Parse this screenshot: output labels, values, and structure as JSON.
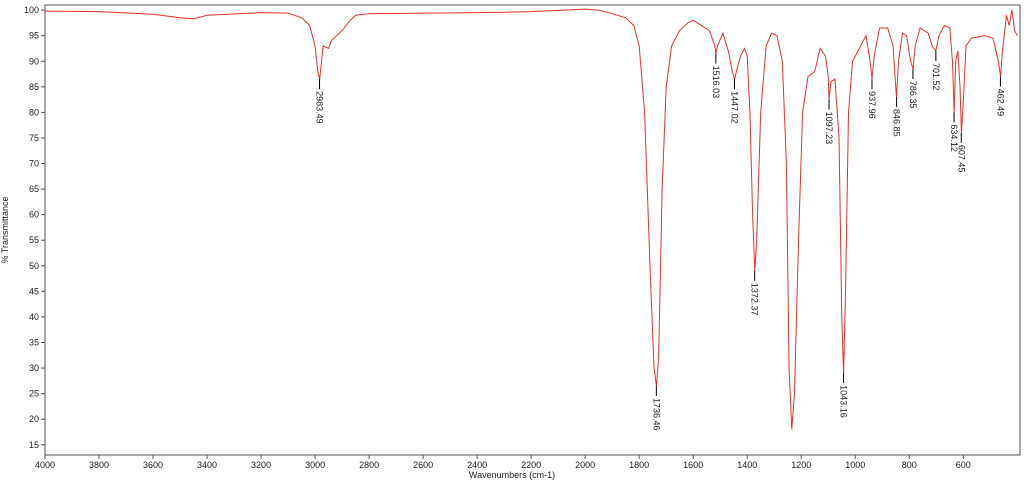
{
  "chart_data": {
    "type": "line",
    "xlabel": "Wavenumbers (cm-1)",
    "ylabel": "% Transmittance",
    "color": "#e8302a",
    "xlim": [
      4000,
      390
    ],
    "ylim": [
      13,
      101
    ],
    "xticks": [
      4000,
      3800,
      3600,
      3400,
      3200,
      3000,
      2800,
      2600,
      2400,
      2200,
      2000,
      1800,
      1600,
      1400,
      1200,
      1000,
      800,
      600
    ],
    "yticks": [
      15,
      20,
      25,
      30,
      35,
      40,
      45,
      50,
      55,
      60,
      65,
      70,
      75,
      80,
      85,
      90,
      95,
      100
    ],
    "x": [
      4000,
      3800,
      3600,
      3500,
      3450,
      3400,
      3200,
      3100,
      3050,
      3020,
      3000,
      2990,
      2983,
      2970,
      2950,
      2940,
      2900,
      2870,
      2850,
      2800,
      2400,
      2200,
      2000,
      1950,
      1900,
      1850,
      1820,
      1800,
      1780,
      1760,
      1745,
      1736,
      1728,
      1715,
      1700,
      1680,
      1650,
      1620,
      1600,
      1570,
      1540,
      1520,
      1516,
      1510,
      1490,
      1470,
      1455,
      1447,
      1440,
      1425,
      1410,
      1400,
      1390,
      1380,
      1372,
      1365,
      1350,
      1330,
      1310,
      1290,
      1270,
      1255,
      1245,
      1235,
      1225,
      1210,
      1195,
      1175,
      1150,
      1130,
      1110,
      1100,
      1097,
      1090,
      1075,
      1060,
      1050,
      1043,
      1036,
      1025,
      1010,
      990,
      960,
      945,
      938,
      930,
      910,
      880,
      860,
      850,
      847,
      840,
      825,
      810,
      795,
      786,
      778,
      760,
      730,
      715,
      702,
      690,
      670,
      650,
      640,
      634,
      628,
      620,
      612,
      607,
      600,
      590,
      570,
      520,
      490,
      470,
      462,
      455,
      440,
      430,
      420,
      410,
      400
    ],
    "values": [
      99.8,
      99.7,
      99.2,
      98.5,
      98.3,
      99,
      99.5,
      99.4,
      98.5,
      97,
      93,
      88,
      86.5,
      93,
      92.5,
      94,
      96,
      98,
      99,
      99.3,
      99.5,
      99.7,
      100.2,
      100,
      99.3,
      98.5,
      97,
      93,
      80,
      50,
      30,
      26.5,
      32,
      65,
      85,
      93,
      96,
      97.5,
      98,
      97,
      96,
      93,
      91.5,
      93,
      95.5,
      92,
      88,
      86.5,
      88,
      91,
      92.5,
      91,
      80,
      60,
      49,
      55,
      80,
      93,
      95.5,
      95,
      90,
      70,
      30,
      18,
      25,
      55,
      80,
      87,
      88,
      92.5,
      91,
      87,
      82.5,
      86,
      86.5,
      75,
      40,
      29,
      45,
      80,
      90,
      92,
      95,
      90,
      86.5,
      91,
      96.5,
      96.5,
      93,
      85,
      83,
      90,
      95.5,
      95,
      90,
      88.5,
      93,
      96.5,
      95.5,
      93,
      92,
      95,
      97,
      96.5,
      90,
      80,
      90,
      92,
      85,
      76,
      82,
      93,
      94.5,
      95,
      94.5,
      90,
      87,
      92,
      99,
      97,
      100,
      96,
      95
    ],
    "annotations": [
      {
        "text": "2983.49",
        "x": 2983.49,
        "y": 86.5
      },
      {
        "text": "1736.46",
        "x": 1736.46,
        "y": 26.5
      },
      {
        "text": "1516.03",
        "x": 1516.03,
        "y": 91.5
      },
      {
        "text": "1447.02",
        "x": 1447.02,
        "y": 86.5
      },
      {
        "text": "1372.37",
        "x": 1372.37,
        "y": 49
      },
      {
        "text": "1097.23",
        "x": 1097.23,
        "y": 82.5
      },
      {
        "text": "1043.16",
        "x": 1043.16,
        "y": 29
      },
      {
        "text": "937.96",
        "x": 937.96,
        "y": 86.5
      },
      {
        "text": "846.85",
        "x": 846.85,
        "y": 83
      },
      {
        "text": "786.35",
        "x": 786.35,
        "y": 88.5
      },
      {
        "text": "701.52",
        "x": 701.52,
        "y": 92
      },
      {
        "text": "634.12",
        "x": 634.12,
        "y": 80
      },
      {
        "text": "607.45",
        "x": 607.45,
        "y": 76
      },
      {
        "text": "462.49",
        "x": 462.49,
        "y": 87
      }
    ]
  }
}
